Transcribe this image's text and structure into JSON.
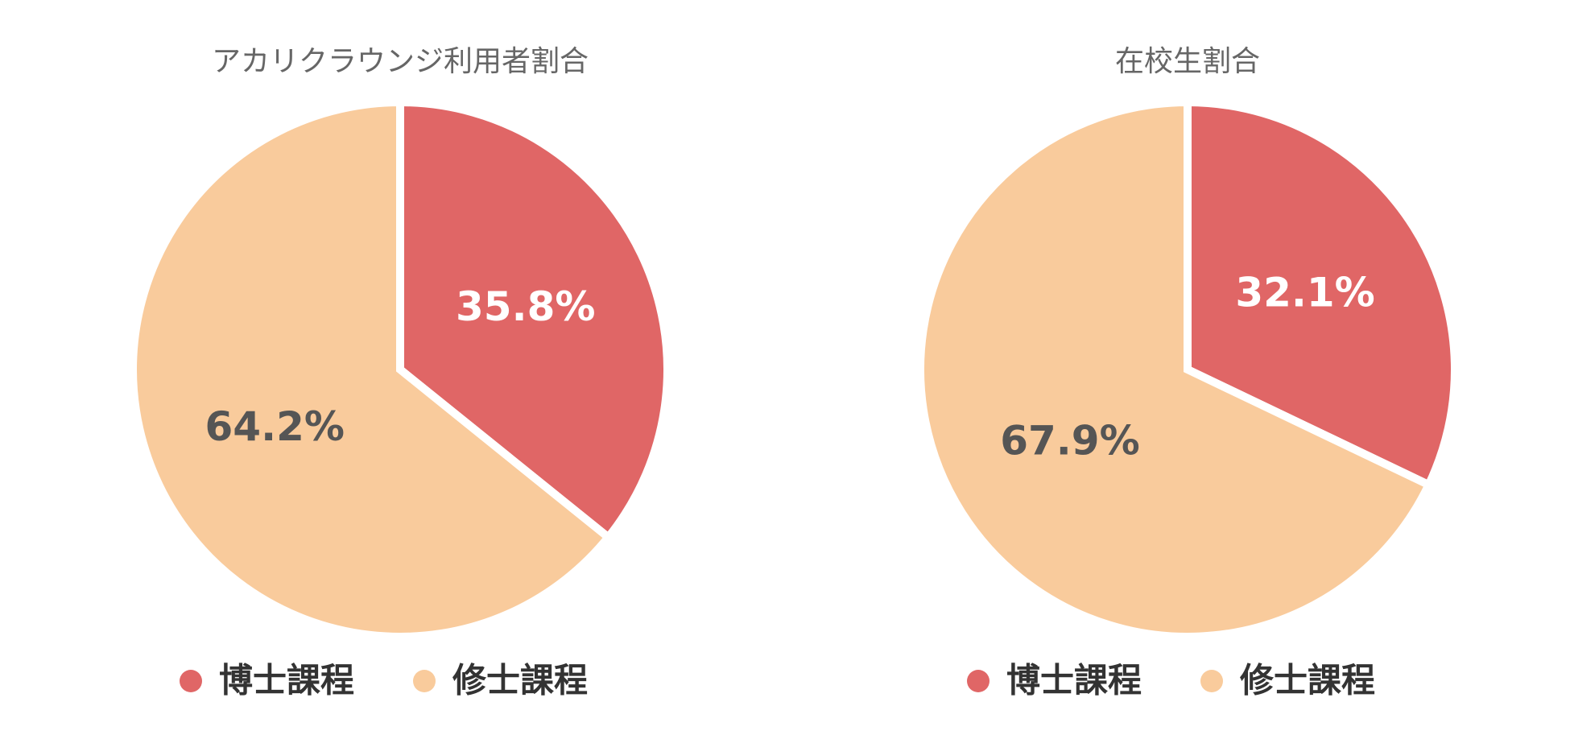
{
  "chart_data": [
    {
      "type": "pie",
      "title": "アカリクラウンジ利用者割合",
      "categories": [
        "博士課程",
        "修士課程"
      ],
      "values": [
        35.8,
        64.2
      ],
      "value_labels": [
        "35.8%",
        "64.2%"
      ],
      "colors": [
        "#e06666",
        "#f9cb9c"
      ]
    },
    {
      "type": "pie",
      "title": "在校生割合",
      "categories": [
        "博士課程",
        "修士課程"
      ],
      "values": [
        32.1,
        67.9
      ],
      "value_labels": [
        "32.1%",
        "67.9%"
      ],
      "colors": [
        "#e06666",
        "#f9cb9c"
      ]
    }
  ]
}
